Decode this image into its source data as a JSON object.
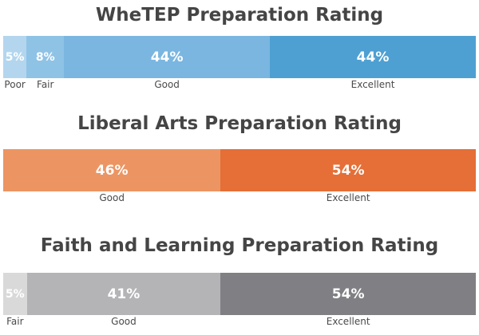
{
  "chart_data": [
    {
      "type": "bar",
      "orientation": "stacked-horizontal",
      "title": "WheTEP Preparation Rating",
      "categories": [
        "Poor",
        "Fair",
        "Good",
        "Excellent"
      ],
      "values": [
        5,
        8,
        44,
        44
      ],
      "labels": [
        "5%",
        "8%",
        "44%",
        "44%"
      ],
      "colors": [
        "#b3d6ee",
        "#8fc3e6",
        "#7ab6e0",
        "#4ea0d2"
      ]
    },
    {
      "type": "bar",
      "orientation": "stacked-horizontal",
      "title": "Liberal Arts Preparation Rating",
      "categories": [
        "Good",
        "Excellent"
      ],
      "values": [
        46,
        54
      ],
      "labels": [
        "46%",
        "54%"
      ],
      "colors": [
        "#ec9563",
        "#e56f37"
      ]
    },
    {
      "type": "bar",
      "orientation": "stacked-horizontal",
      "title": "Faith and Learning Preparation Rating",
      "categories": [
        "Fair",
        "Good",
        "Excellent"
      ],
      "values": [
        5,
        41,
        54
      ],
      "labels": [
        "5%",
        "41%",
        "54%"
      ],
      "colors": [
        "#d9d9d9",
        "#b4b4b7",
        "#808084"
      ]
    }
  ]
}
